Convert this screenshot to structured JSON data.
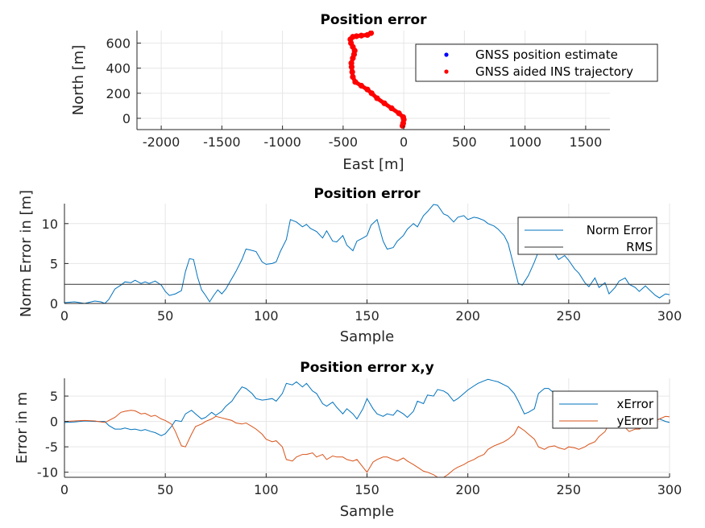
{
  "chart_data": [
    {
      "type": "scatter",
      "title": "Position error",
      "xlabel": "East [m]",
      "ylabel": "North [m]",
      "xlim": [
        -2200,
        1700
      ],
      "ylim": [
        -90,
        700
      ],
      "xticks": [
        -2000,
        -1500,
        -1000,
        -500,
        0,
        500,
        1000,
        1500
      ],
      "yticks": [
        0,
        200,
        400,
        600
      ],
      "grid": true,
      "legend_position": "top-right",
      "series": [
        {
          "name": "GNSS position estimate",
          "color": "#0000ff",
          "x": [
            -10,
            -5,
            0,
            -5,
            -40,
            -100,
            -160,
            -220,
            -265,
            -300,
            -350,
            -400,
            -420,
            -425,
            -430,
            -432,
            -420,
            -410,
            -405,
            -420,
            -435,
            -440,
            -420,
            -390,
            -350,
            -300,
            -270
          ],
          "y": [
            -60,
            -40,
            -10,
            10,
            40,
            80,
            120,
            160,
            200,
            230,
            260,
            290,
            330,
            370,
            410,
            440,
            480,
            510,
            540,
            570,
            600,
            630,
            650,
            655,
            660,
            665,
            680
          ]
        },
        {
          "name": "GNSS aided INS trajectory",
          "color": "#ff0000",
          "x": [
            -10,
            -5,
            0,
            -5,
            -40,
            -100,
            -160,
            -220,
            -265,
            -300,
            -350,
            -400,
            -420,
            -425,
            -430,
            -432,
            -420,
            -410,
            -405,
            -420,
            -435,
            -440,
            -420,
            -390,
            -350,
            -300,
            -270
          ],
          "y": [
            -60,
            -40,
            -10,
            10,
            40,
            80,
            120,
            160,
            200,
            230,
            260,
            290,
            330,
            370,
            410,
            440,
            480,
            510,
            540,
            570,
            600,
            630,
            650,
            655,
            660,
            665,
            680
          ]
        }
      ]
    },
    {
      "type": "line",
      "title": "Position error",
      "xlabel": "Sample",
      "ylabel": "Norm Error in [m]",
      "xlim": [
        0,
        300
      ],
      "ylim": [
        0,
        12.5
      ],
      "xticks": [
        0,
        50,
        100,
        150,
        200,
        250,
        300
      ],
      "yticks": [
        0,
        5,
        10
      ],
      "grid": true,
      "legend_position": "top-right",
      "series": [
        {
          "name": "Norm Error",
          "color": "#0072bd",
          "x": [
            0,
            5,
            10,
            15,
            18,
            20,
            22,
            25,
            28,
            30,
            33,
            35,
            38,
            40,
            42,
            45,
            48,
            50,
            52,
            55,
            58,
            60,
            62,
            64,
            66,
            68,
            70,
            72,
            74,
            76,
            78,
            80,
            82,
            85,
            88,
            90,
            92,
            95,
            98,
            100,
            103,
            105,
            107,
            110,
            112,
            115,
            118,
            120,
            122,
            125,
            128,
            130,
            133,
            135,
            138,
            140,
            143,
            145,
            148,
            150,
            152,
            155,
            158,
            160,
            163,
            165,
            168,
            170,
            173,
            175,
            178,
            180,
            183,
            185,
            188,
            190,
            193,
            195,
            198,
            200,
            203,
            205,
            208,
            210,
            213,
            215,
            218,
            220,
            223,
            225,
            227,
            230,
            233,
            235,
            238,
            240,
            243,
            245,
            248,
            250,
            253,
            255,
            258,
            260,
            263,
            265,
            268,
            270,
            273,
            275,
            278,
            280,
            283,
            285,
            288,
            290,
            293,
            295,
            298,
            300
          ],
          "values": [
            0.1,
            0.2,
            0.0,
            0.3,
            0.2,
            0.0,
            0.5,
            1.8,
            2.3,
            2.7,
            2.6,
            2.9,
            2.5,
            2.7,
            2.5,
            2.8,
            2.3,
            1.5,
            1.0,
            1.2,
            1.6,
            4.0,
            5.6,
            5.5,
            3.3,
            1.7,
            1.0,
            0.2,
            1.0,
            1.7,
            1.2,
            1.8,
            2.7,
            4.0,
            5.5,
            6.8,
            6.7,
            6.5,
            5.2,
            4.9,
            5.0,
            5.2,
            6.5,
            8.0,
            10.5,
            10.2,
            9.6,
            9.9,
            9.4,
            9.0,
            8.2,
            9.1,
            7.8,
            7.7,
            8.5,
            7.3,
            6.6,
            7.8,
            8.2,
            8.5,
            9.8,
            10.5,
            7.8,
            6.8,
            7.0,
            7.8,
            8.5,
            9.3,
            10.0,
            9.6,
            11.0,
            11.5,
            12.4,
            12.3,
            11.2,
            11.0,
            10.2,
            10.8,
            11.0,
            10.5,
            10.8,
            10.7,
            10.4,
            10.0,
            9.7,
            9.3,
            8.5,
            7.5,
            4.5,
            2.5,
            2.3,
            3.5,
            5.2,
            6.5,
            8.0,
            7.5,
            6.3,
            5.5,
            6.0,
            5.4,
            4.3,
            3.8,
            2.6,
            2.1,
            3.2,
            2.0,
            2.6,
            1.2,
            2.0,
            2.8,
            3.2,
            2.4,
            2.0,
            1.5,
            2.2,
            1.7,
            1.0,
            0.7,
            1.2,
            1.1
          ]
        },
        {
          "name": "RMS",
          "color": "#333333",
          "x": [
            0,
            300
          ],
          "values": [
            2.4,
            2.4
          ]
        }
      ]
    },
    {
      "type": "line",
      "title": "Position error x,y",
      "xlabel": "Sample",
      "ylabel": "Error in m",
      "xlim": [
        0,
        300
      ],
      "ylim": [
        -11,
        8.5
      ],
      "xticks": [
        0,
        50,
        100,
        150,
        200,
        250,
        300
      ],
      "yticks": [
        -10,
        -5,
        0,
        5
      ],
      "grid": true,
      "legend_position": "top-right",
      "series": [
        {
          "name": "xError",
          "color": "#0072bd",
          "x": [
            0,
            5,
            10,
            15,
            20,
            22,
            25,
            28,
            30,
            33,
            35,
            38,
            40,
            43,
            45,
            48,
            50,
            53,
            55,
            58,
            60,
            63,
            65,
            68,
            70,
            73,
            75,
            78,
            80,
            83,
            85,
            88,
            90,
            93,
            95,
            98,
            100,
            103,
            105,
            108,
            110,
            113,
            115,
            118,
            120,
            123,
            125,
            128,
            130,
            133,
            135,
            138,
            140,
            143,
            145,
            148,
            150,
            153,
            155,
            158,
            160,
            163,
            165,
            168,
            170,
            173,
            175,
            178,
            180,
            183,
            185,
            188,
            190,
            193,
            195,
            198,
            200,
            203,
            205,
            208,
            210,
            213,
            215,
            218,
            220,
            223,
            225,
            228,
            230,
            233,
            235,
            238,
            240,
            243,
            245,
            248,
            250,
            253,
            255,
            258,
            260,
            263,
            265,
            268,
            270,
            273,
            275,
            278,
            280,
            283,
            285,
            288,
            290,
            293,
            295,
            298,
            300
          ],
          "values": [
            -0.2,
            -0.1,
            0.1,
            0.0,
            0.0,
            -0.8,
            -1.5,
            -1.5,
            -1.3,
            -1.6,
            -1.5,
            -1.8,
            -1.6,
            -2.0,
            -2.2,
            -2.8,
            -2.4,
            -1.0,
            0.2,
            0.0,
            1.5,
            2.2,
            1.5,
            0.5,
            0.8,
            1.8,
            1.2,
            2.0,
            3.0,
            4.0,
            5.2,
            6.8,
            6.5,
            5.5,
            4.5,
            4.2,
            4.3,
            4.5,
            4.0,
            5.5,
            7.5,
            7.2,
            7.8,
            6.8,
            7.5,
            6.0,
            5.5,
            3.5,
            3.0,
            3.8,
            2.8,
            1.5,
            2.5,
            1.5,
            0.5,
            2.5,
            4.5,
            2.5,
            1.5,
            1.0,
            1.5,
            1.2,
            2.2,
            1.5,
            0.8,
            2.0,
            4.0,
            3.5,
            5.2,
            5.0,
            6.3,
            6.0,
            5.5,
            4.0,
            4.5,
            5.5,
            6.2,
            7.0,
            7.5,
            8.0,
            8.3,
            8.0,
            7.8,
            7.2,
            6.8,
            5.5,
            4.0,
            1.5,
            1.8,
            2.5,
            5.5,
            6.5,
            6.5,
            5.5,
            4.5,
            2.5,
            3.0,
            2.5,
            2.5,
            3.0,
            3.5,
            3.5,
            2.5,
            1.5,
            0.5,
            1.0,
            0.5,
            -0.5,
            0.2,
            -0.8,
            -1.5,
            -0.5,
            0.0,
            0.3,
            0.5,
            0.0,
            -0.2
          ]
        },
        {
          "name": "yError",
          "color": "#d95319",
          "x": [
            0,
            5,
            10,
            15,
            20,
            22,
            25,
            28,
            30,
            33,
            35,
            38,
            40,
            43,
            45,
            48,
            50,
            53,
            55,
            58,
            60,
            63,
            65,
            68,
            70,
            73,
            75,
            78,
            80,
            83,
            85,
            88,
            90,
            93,
            95,
            98,
            100,
            103,
            105,
            108,
            110,
            113,
            115,
            118,
            120,
            123,
            125,
            128,
            130,
            133,
            135,
            138,
            140,
            143,
            145,
            148,
            150,
            153,
            155,
            158,
            160,
            163,
            165,
            168,
            170,
            173,
            175,
            178,
            180,
            183,
            185,
            188,
            190,
            193,
            195,
            198,
            200,
            203,
            205,
            208,
            210,
            213,
            215,
            218,
            220,
            223,
            225,
            228,
            230,
            233,
            235,
            238,
            240,
            243,
            245,
            248,
            250,
            253,
            255,
            258,
            260,
            263,
            265,
            268,
            270,
            273,
            275,
            278,
            280,
            283,
            285,
            288,
            290,
            293,
            295,
            298,
            300
          ],
          "values": [
            0.0,
            0.1,
            0.2,
            0.1,
            -0.2,
            0.2,
            0.8,
            1.8,
            2.0,
            2.2,
            2.1,
            1.5,
            1.6,
            1.0,
            1.2,
            0.5,
            0.2,
            -0.5,
            -2.0,
            -4.8,
            -5.0,
            -2.5,
            -1.0,
            -0.5,
            0.0,
            0.5,
            1.0,
            0.7,
            0.5,
            0.2,
            -0.3,
            -0.5,
            -0.3,
            -1.0,
            -1.5,
            -2.5,
            -3.5,
            -4.0,
            -3.8,
            -5.0,
            -7.5,
            -7.8,
            -7.0,
            -6.5,
            -6.5,
            -6.2,
            -7.0,
            -6.5,
            -7.5,
            -6.8,
            -7.0,
            -7.0,
            -7.5,
            -7.8,
            -7.5,
            -9.0,
            -10.0,
            -8.0,
            -7.5,
            -7.0,
            -7.0,
            -7.5,
            -7.8,
            -7.2,
            -7.8,
            -8.5,
            -9.0,
            -9.8,
            -10.0,
            -10.5,
            -11.0,
            -11.0,
            -10.5,
            -9.5,
            -9.0,
            -8.5,
            -8.0,
            -7.5,
            -7.0,
            -6.5,
            -5.5,
            -4.8,
            -4.5,
            -4.0,
            -3.5,
            -2.5,
            -1.0,
            -1.8,
            -2.5,
            -3.5,
            -5.0,
            -5.5,
            -5.0,
            -4.8,
            -5.2,
            -5.5,
            -5.0,
            -5.2,
            -5.5,
            -5.0,
            -4.5,
            -4.0,
            -3.0,
            -2.0,
            -0.5,
            0.0,
            -0.8,
            -1.2,
            -2.0,
            -1.5,
            -1.5,
            -1.0,
            -0.5,
            0.0,
            0.5,
            1.0,
            0.9
          ]
        }
      ]
    }
  ]
}
